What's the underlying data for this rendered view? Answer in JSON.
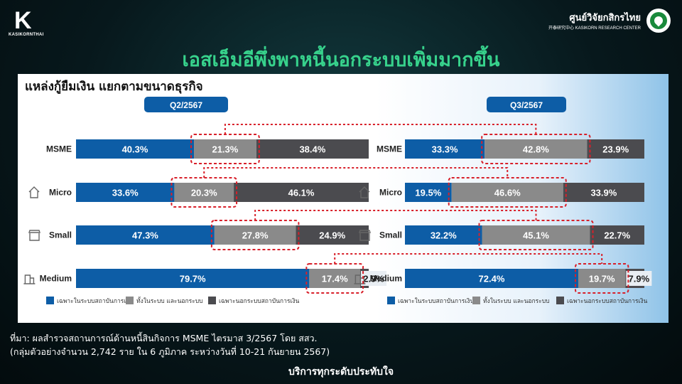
{
  "header": {
    "left_logo_mark": "K",
    "left_logo_text": "KASIKORNTHAI",
    "right_logo_thai": "ศูนย์วิจัยกสิกรไทย",
    "right_logo_sub": "开泰研究中心 KASIKORN RESEARCH CENTER",
    "title": "เอสเอ็มอีพึ่งพาหนี้นอกระบบเพิ่มมากขึ้น"
  },
  "footer": {
    "source_line1": "ที่มา: ผลสำรวจสถานการณ์ด้านหนี้สินกิจการ MSME ไตรมาส 3/2567 โดย สสว.",
    "source_line2": "(กลุ่มตัวอย่างจำนวน 2,742 ราย ใน 6 ภูมิภาค ระหว่างวันที่ 10-21 กันยายน 2567)",
    "slogan": "บริการทุกระดับประทับใจ"
  },
  "chart_data": {
    "type": "bar",
    "stacked": true,
    "orientation": "horizontal",
    "title": "แหล่งกู้ยืมเงิน แยกตามขนาดธุรกิจ",
    "categories": [
      "MSME",
      "Micro",
      "Small",
      "Medium"
    ],
    "category_icons": [
      "",
      "house-icon",
      "shop-icon",
      "building-icon"
    ],
    "legend": [
      "เฉพาะในระบบสถาบันการเงิน",
      "ทั้งในระบบ และนอกระบบ",
      "เฉพาะนอกระบบสถาบันการเงิน"
    ],
    "colors": [
      "#0d5da6",
      "#8a8a8a",
      "#4b4b4f"
    ],
    "highlight_color": "#d8202a",
    "panels": [
      {
        "period": "Q2/2567",
        "series": [
          {
            "name": "เฉพาะในระบบสถาบันการเงิน",
            "values": [
              40.3,
              33.6,
              47.3,
              79.7
            ],
            "labels": [
              "40.3%",
              "33.6%",
              "47.3%",
              "79.7%"
            ]
          },
          {
            "name": "ทั้งในระบบ และนอกระบบ",
            "values": [
              21.3,
              20.3,
              27.8,
              17.4
            ],
            "labels": [
              "21.3%",
              "20.3%",
              "27.8%",
              "17.4%"
            ]
          },
          {
            "name": "เฉพาะนอกระบบสถาบันการเงิน",
            "values": [
              38.4,
              46.1,
              24.9,
              2.9
            ],
            "labels": [
              "38.4%",
              "46.1%",
              "24.9%",
              "2.9%"
            ]
          }
        ]
      },
      {
        "period": "Q3/2567",
        "series": [
          {
            "name": "เฉพาะในระบบสถาบันการเงิน",
            "values": [
              33.3,
              19.5,
              32.2,
              72.4
            ],
            "labels": [
              "33.3%",
              "19.5%",
              "32.2%",
              "72.4%"
            ]
          },
          {
            "name": "ทั้งในระบบ และนอกระบบ",
            "values": [
              42.8,
              46.6,
              45.1,
              19.7
            ],
            "labels": [
              "42.8%",
              "46.6%",
              "45.1%",
              "19.7%"
            ]
          },
          {
            "name": "เฉพาะนอกระบบสถาบันการเงิน",
            "values": [
              23.9,
              33.9,
              22.7,
              7.9
            ],
            "labels": [
              "23.9%",
              "33.9%",
              "22.7%",
              "7.9%"
            ]
          }
        ]
      }
    ]
  }
}
